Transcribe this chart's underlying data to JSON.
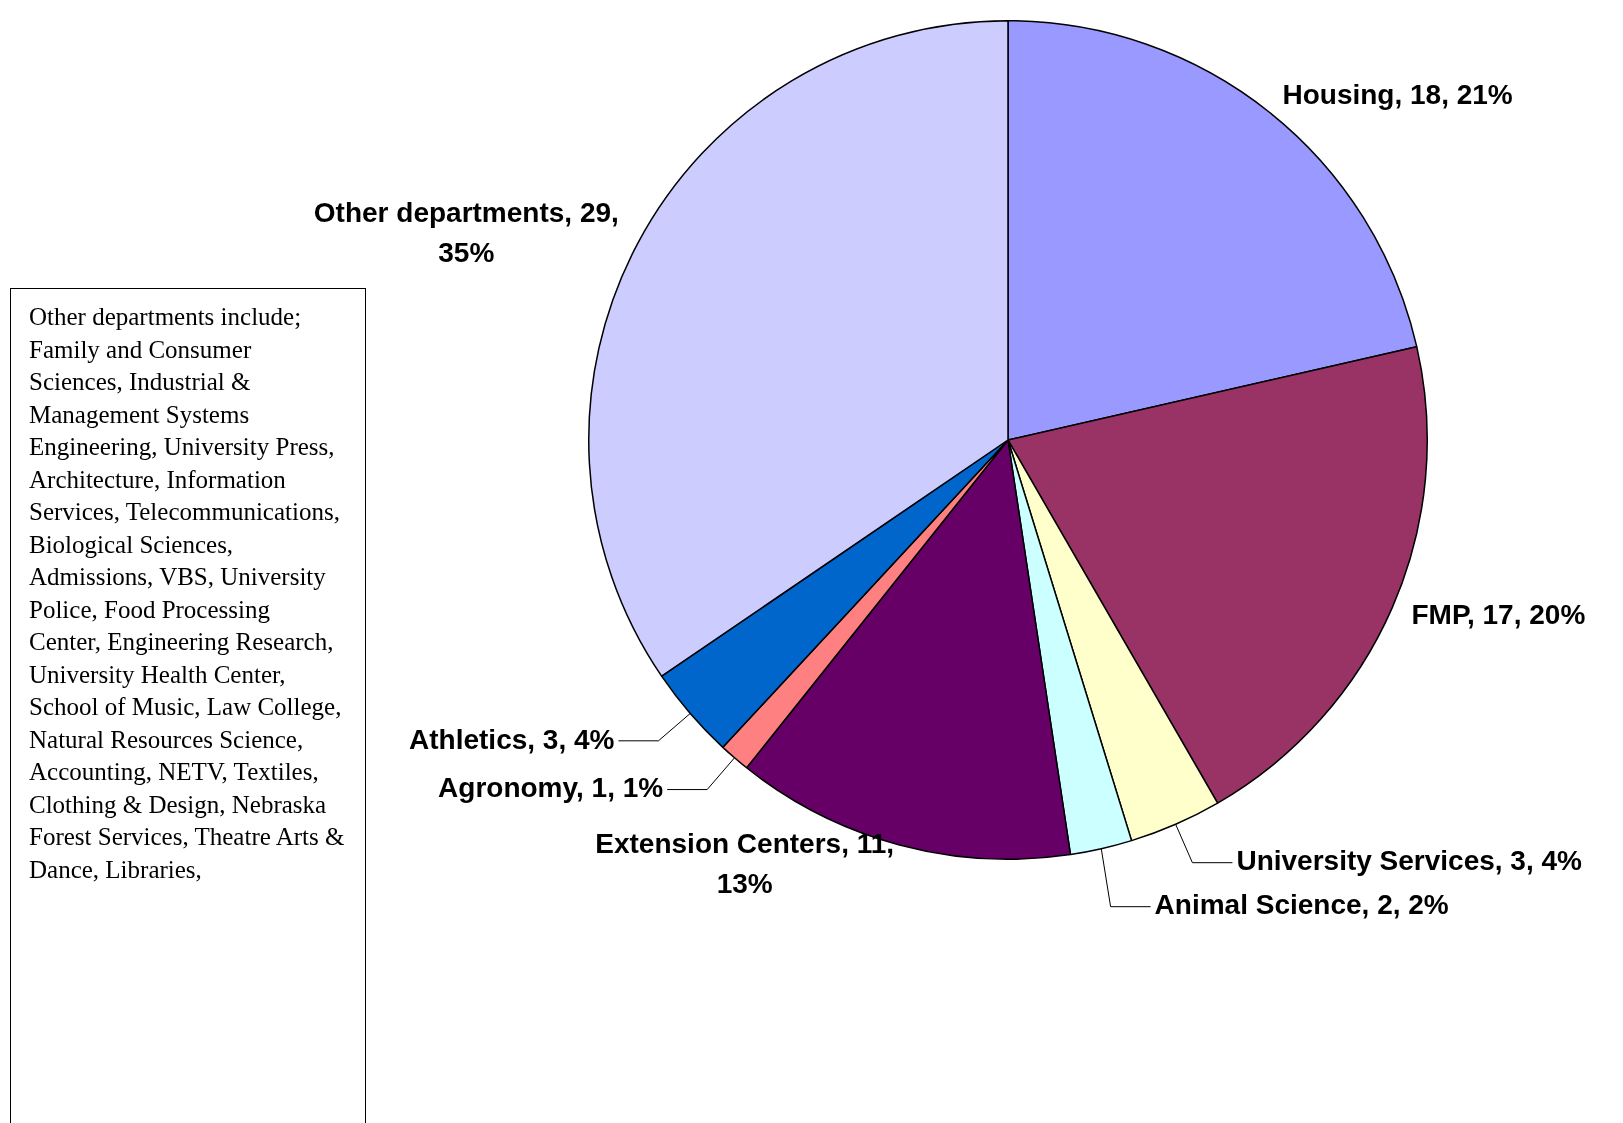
{
  "chart_data": {
    "type": "pie",
    "categories": [
      "Housing",
      "FMP",
      "University Services",
      "Animal Science",
      "Extension Centers",
      "Agronomy",
      "Athletics",
      "Other departments"
    ],
    "values": [
      18,
      17,
      3,
      2,
      11,
      1,
      3,
      29
    ],
    "value_labels": [
      "18, 21%",
      "17, 20%",
      "3, 4%",
      "2, 2%",
      "11, 13%",
      "1, 1%",
      "3, 4%",
      "29, 35%"
    ],
    "colors": [
      "#9999ff",
      "#993366",
      "#ffffcc",
      "#ccffff",
      "#660066",
      "#ff8080",
      "#0066cc",
      "#ccccff"
    ],
    "legend": false,
    "annotations": [
      "Other departments include; Family and Consumer Sciences, Industrial & Management Systems Engineering, University Press, Architecture, Information Services, Telecommunications, Biological Sciences, Admissions,  VBS, University Police, Food Processing Center, Engineering Research, University Health Center, School of Music, Law College, Natural Resources Science, Accounting, NETV, Textiles, Clothing & Design, Nebraska Forest Services, Theatre Arts & Dance,  Libraries,"
    ]
  }
}
